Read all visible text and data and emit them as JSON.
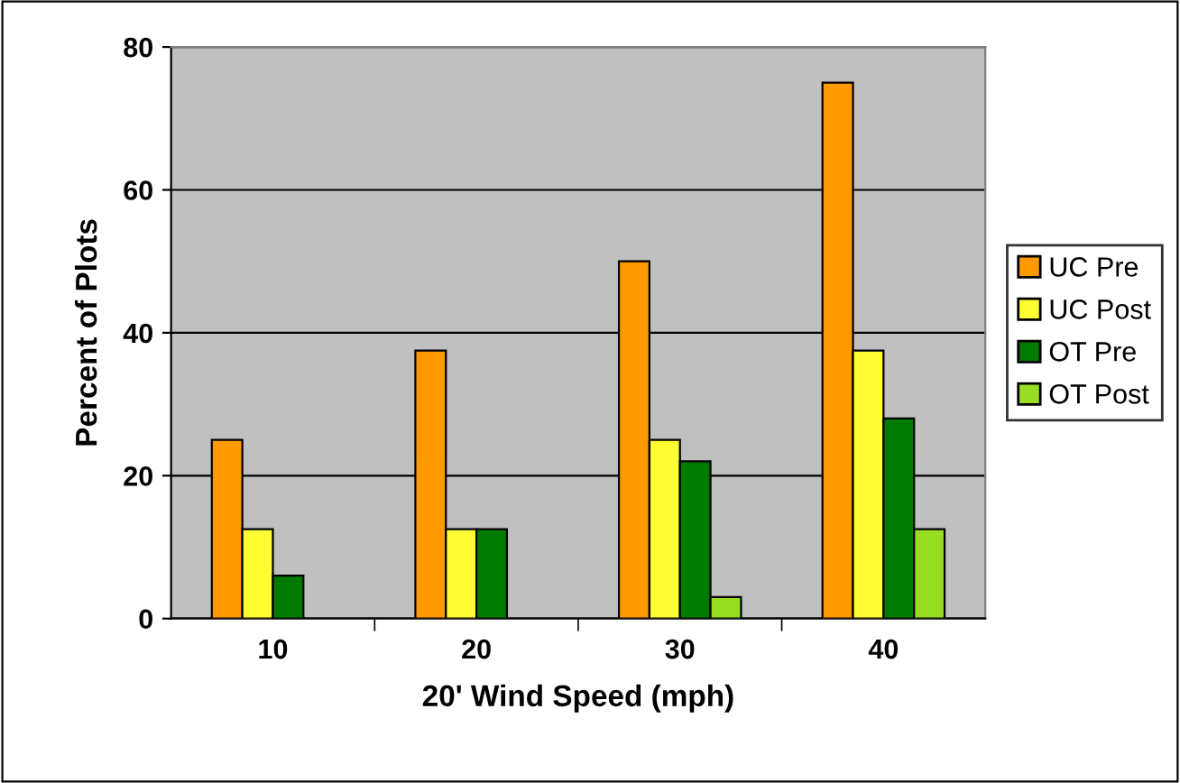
{
  "chart_data": {
    "type": "bar",
    "xlabel": "20' Wind Speed (mph)",
    "ylabel": "Percent of Plots",
    "categories": [
      "10",
      "20",
      "30",
      "40"
    ],
    "series": [
      {
        "name": "UC Pre",
        "color": "#ff9900",
        "values": [
          25,
          37.5,
          50,
          75
        ]
      },
      {
        "name": "UC Post",
        "color": "#ffff33",
        "values": [
          12.5,
          12.5,
          25,
          37.5
        ]
      },
      {
        "name": "OT Pre",
        "color": "#007a00",
        "values": [
          6,
          12.5,
          22,
          28
        ]
      },
      {
        "name": "OT Post",
        "color": "#99dd22",
        "values": [
          null,
          null,
          3,
          12.5
        ]
      }
    ],
    "ylim": [
      0,
      80
    ],
    "yticks": [
      0,
      20,
      40,
      60,
      80
    ],
    "grid": "y",
    "legend": "right"
  }
}
